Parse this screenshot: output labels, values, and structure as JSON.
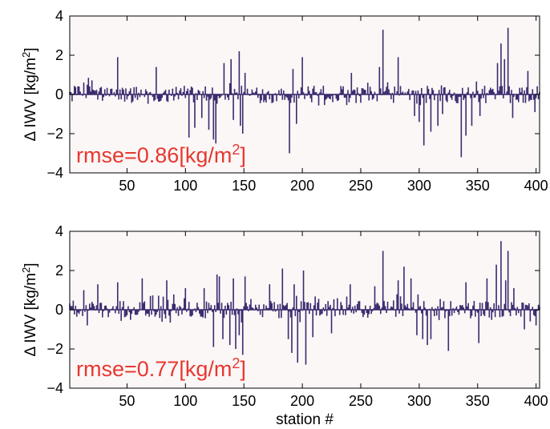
{
  "colors": {
    "background": "#ffffff",
    "plot_background": "#fbf7f7",
    "bar": "#3b2a6e",
    "axis": "#000000",
    "annotation": "#e8372f"
  },
  "xlabel": "station #",
  "chart_data": [
    {
      "type": "bar",
      "ylabel_prefix": "Δ IWV [kg/m",
      "ylabel_sup": "2",
      "ylabel_suffix": "]",
      "annotation_prefix": "rmse=0.86[kg/m",
      "annotation_sup": "2",
      "annotation_suffix": "]",
      "xlim": [
        1,
        403
      ],
      "ylim": [
        -4,
        4
      ],
      "xticks": [
        50,
        100,
        150,
        200,
        250,
        300,
        350,
        400
      ],
      "yticks": [
        -4,
        -2,
        0,
        2,
        4
      ],
      "xtick_labels": [
        "50",
        "100",
        "150",
        "200",
        "250",
        "300",
        "350",
        "400"
      ],
      "ytick_labels": [
        "−4",
        "−2",
        "0",
        "2",
        "4"
      ],
      "grid": false,
      "highlights": [
        {
          "x": 17,
          "y": 0.85
        },
        {
          "x": 42,
          "y": 1.9
        },
        {
          "x": 75,
          "y": 1.4
        },
        {
          "x": 103,
          "y": -2.2
        },
        {
          "x": 108,
          "y": -1.7
        },
        {
          "x": 114,
          "y": -1.2
        },
        {
          "x": 120,
          "y": -1.8
        },
        {
          "x": 124,
          "y": -2.3
        },
        {
          "x": 126,
          "y": -2.5
        },
        {
          "x": 133,
          "y": 1.6
        },
        {
          "x": 139,
          "y": 1.8
        },
        {
          "x": 141,
          "y": -1.3
        },
        {
          "x": 146,
          "y": 2.2
        },
        {
          "x": 147,
          "y": -1.6
        },
        {
          "x": 149,
          "y": -2.0
        },
        {
          "x": 151,
          "y": 1.1
        },
        {
          "x": 189,
          "y": -3.0
        },
        {
          "x": 192,
          "y": 1.3
        },
        {
          "x": 195,
          "y": -1.5
        },
        {
          "x": 200,
          "y": 1.9
        },
        {
          "x": 242,
          "y": 1.1
        },
        {
          "x": 266,
          "y": 1.4
        },
        {
          "x": 269,
          "y": 3.3
        },
        {
          "x": 282,
          "y": 1.9
        },
        {
          "x": 296,
          "y": -1.1
        },
        {
          "x": 300,
          "y": -1.4
        },
        {
          "x": 304,
          "y": -2.6
        },
        {
          "x": 310,
          "y": -1.9
        },
        {
          "x": 316,
          "y": -1.6
        },
        {
          "x": 320,
          "y": -1.0
        },
        {
          "x": 336,
          "y": -3.2
        },
        {
          "x": 340,
          "y": -2.1
        },
        {
          "x": 345,
          "y": -1.6
        },
        {
          "x": 352,
          "y": -1.1
        },
        {
          "x": 367,
          "y": 1.6
        },
        {
          "x": 370,
          "y": 2.6
        },
        {
          "x": 373,
          "y": 1.8
        },
        {
          "x": 376,
          "y": 3.4
        },
        {
          "x": 380,
          "y": -1.2
        },
        {
          "x": 393,
          "y": 1.2
        },
        {
          "x": 399,
          "y": -0.9
        }
      ]
    },
    {
      "type": "bar",
      "ylabel_prefix": "Δ IWV [kg/m",
      "ylabel_sup": "2",
      "ylabel_suffix": "]",
      "annotation_prefix": "rmse=0.77[kg/m",
      "annotation_sup": "2",
      "annotation_suffix": "]",
      "xlim": [
        1,
        403
      ],
      "ylim": [
        -4,
        4
      ],
      "xticks": [
        50,
        100,
        150,
        200,
        250,
        300,
        350,
        400
      ],
      "yticks": [
        -4,
        -2,
        0,
        2,
        4
      ],
      "xtick_labels": [
        "50",
        "100",
        "150",
        "200",
        "250",
        "300",
        "350",
        "400"
      ],
      "ytick_labels": [
        "−4",
        "−2",
        "0",
        "2",
        "4"
      ],
      "grid": false,
      "highlights": [
        {
          "x": 13,
          "y": 1.0
        },
        {
          "x": 16,
          "y": -0.8
        },
        {
          "x": 25,
          "y": 1.3
        },
        {
          "x": 42,
          "y": 1.4
        },
        {
          "x": 63,
          "y": 1.6
        },
        {
          "x": 84,
          "y": 1.5
        },
        {
          "x": 100,
          "y": 1.1
        },
        {
          "x": 116,
          "y": 1.1
        },
        {
          "x": 124,
          "y": -1.9
        },
        {
          "x": 127,
          "y": 1.8
        },
        {
          "x": 129,
          "y": 1.7
        },
        {
          "x": 132,
          "y": -1.5
        },
        {
          "x": 138,
          "y": -1.8
        },
        {
          "x": 141,
          "y": 1.6
        },
        {
          "x": 143,
          "y": -2.0
        },
        {
          "x": 146,
          "y": -1.3
        },
        {
          "x": 149,
          "y": -2.3
        },
        {
          "x": 151,
          "y": 1.7
        },
        {
          "x": 172,
          "y": 1.3
        },
        {
          "x": 183,
          "y": 2.1
        },
        {
          "x": 188,
          "y": -1.5
        },
        {
          "x": 191,
          "y": -2.2
        },
        {
          "x": 193,
          "y": 1.3
        },
        {
          "x": 196,
          "y": -2.7
        },
        {
          "x": 201,
          "y": 2.0
        },
        {
          "x": 203,
          "y": -2.8
        },
        {
          "x": 209,
          "y": -1.4
        },
        {
          "x": 225,
          "y": -1.2
        },
        {
          "x": 241,
          "y": 1.3
        },
        {
          "x": 262,
          "y": 1.2
        },
        {
          "x": 269,
          "y": 3.0
        },
        {
          "x": 282,
          "y": 1.5
        },
        {
          "x": 287,
          "y": 2.2
        },
        {
          "x": 293,
          "y": 1.6
        },
        {
          "x": 298,
          "y": -1.3
        },
        {
          "x": 303,
          "y": -1.5
        },
        {
          "x": 307,
          "y": -1.8
        },
        {
          "x": 310,
          "y": -1.5
        },
        {
          "x": 325,
          "y": -2.1
        },
        {
          "x": 340,
          "y": 1.4
        },
        {
          "x": 351,
          "y": -1.7
        },
        {
          "x": 358,
          "y": 1.6
        },
        {
          "x": 366,
          "y": 2.3
        },
        {
          "x": 370,
          "y": 3.5
        },
        {
          "x": 374,
          "y": 1.5
        },
        {
          "x": 376,
          "y": 3.0
        },
        {
          "x": 381,
          "y": 1.1
        },
        {
          "x": 390,
          "y": -1.0
        },
        {
          "x": 400,
          "y": -0.8
        }
      ]
    }
  ]
}
